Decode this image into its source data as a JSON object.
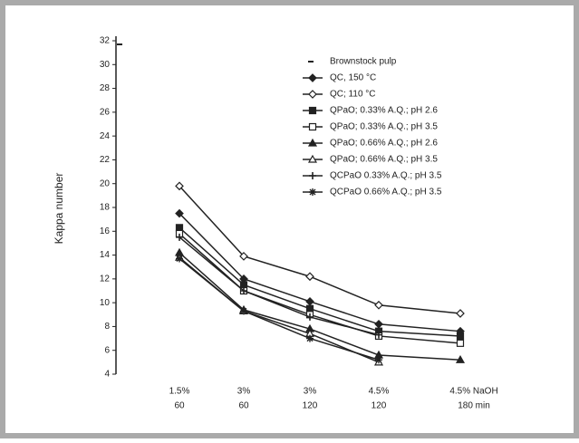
{
  "chart_data": {
    "type": "line",
    "y_label": "Kappa number",
    "categories": [
      [
        "1.5%",
        "60"
      ],
      [
        "3%",
        "60"
      ],
      [
        "3%",
        "120"
      ],
      [
        "4.5%",
        "120"
      ],
      [
        "4.5% NaOH",
        "180 min"
      ]
    ],
    "ylim": [
      4,
      32
    ],
    "yticks": [
      4,
      6,
      8,
      10,
      12,
      14,
      16,
      18,
      20,
      22,
      24,
      26,
      28,
      30,
      32
    ],
    "reference": {
      "name": "Brownstock pulp",
      "value": 32
    },
    "series": [
      {
        "name": "QC, 150 °C",
        "color": "#222",
        "marker": "diamond",
        "values": [
          17.5,
          12,
          10.1,
          8.2,
          7.6
        ]
      },
      {
        "name": "QC; 110 °C",
        "color": "#222",
        "marker": "diamond-open",
        "values": [
          19.8,
          13.9,
          12.2,
          9.8,
          9.1
        ]
      },
      {
        "name": "QPaO; 0.33% A.Q.; pH 2.6",
        "color": "#222",
        "marker": "square",
        "values": [
          16.3,
          11.5,
          9.5,
          7.6,
          7.2
        ]
      },
      {
        "name": "QPaO; 0.33% A.Q.; pH 3.5",
        "color": "#222",
        "marker": "square-open",
        "values": [
          15.8,
          11,
          9,
          7.2,
          6.6
        ]
      },
      {
        "name": "QPaO; 0.66% A.Q.; pH 2.6",
        "color": "#222",
        "marker": "triangle",
        "values": [
          14.2,
          9.4,
          7.8,
          5.6,
          5.2
        ]
      },
      {
        "name": "QPaO; 0.66% A.Q.; pH 3.5",
        "color": "#222",
        "marker": "triangle-open",
        "values": [
          13.8,
          9.3,
          7.4,
          5.0,
          null
        ]
      },
      {
        "name": "QCPaO 0.33% A.Q.; pH 3.5",
        "color": "#222",
        "marker": "plus",
        "values": [
          15.5,
          11,
          8.8,
          7.3,
          null
        ]
      },
      {
        "name": "QCPaO 0.66% A.Q.; pH 3.5",
        "color": "#222",
        "marker": "star",
        "values": [
          13.7,
          9.3,
          7.0,
          5.2,
          null
        ]
      }
    ]
  }
}
